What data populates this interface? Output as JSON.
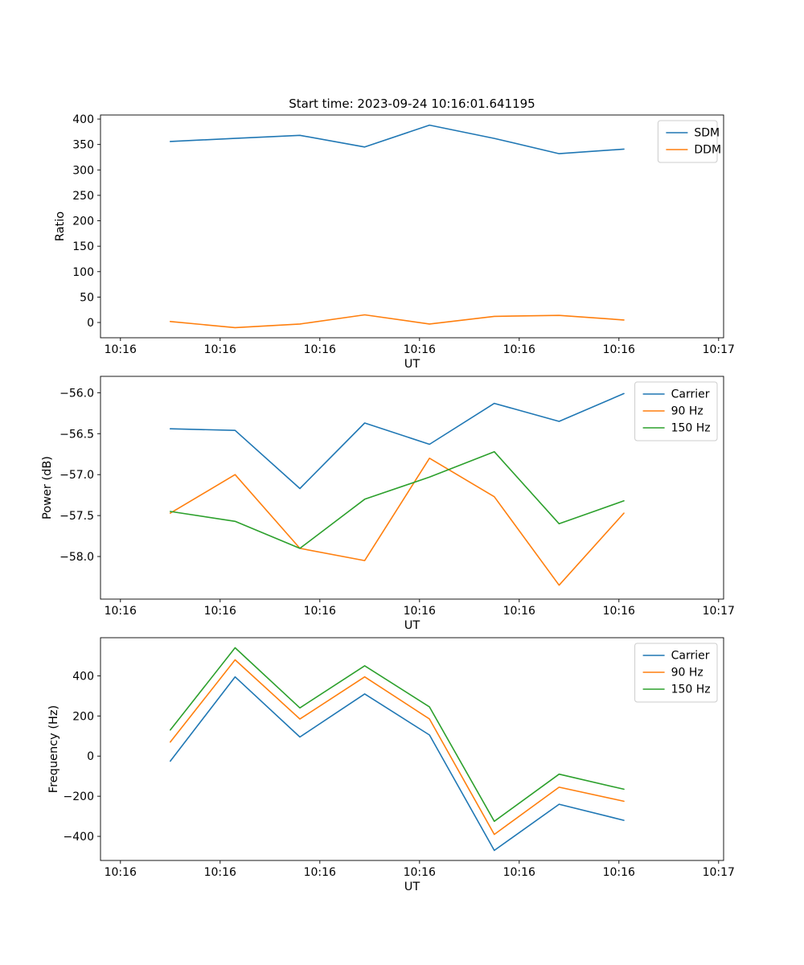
{
  "figure": {
    "title": "Start time: 2023-09-24 10:16:01.641195",
    "background": "#ffffff"
  },
  "colors": {
    "blue": "#1f77b4",
    "orange": "#ff7f0e",
    "green": "#2ca02c",
    "axis": "#000000",
    "legend_border": "#cccccc"
  },
  "chart_data": [
    {
      "id": "ratio",
      "type": "line",
      "title": "",
      "xlabel": "UT",
      "ylabel": "Ratio",
      "grid": false,
      "legend_loc": "upper right",
      "x_seconds": [
        5,
        11.5,
        18,
        24.5,
        31,
        37.5,
        44,
        50.5
      ],
      "xlim": [
        -2,
        60.5
      ],
      "xtick_values": [
        0,
        10,
        20,
        30,
        40,
        50,
        60
      ],
      "xtick_labels": [
        "10:16",
        "10:16",
        "10:16",
        "10:16",
        "10:16",
        "10:16",
        "10:17"
      ],
      "ylim": [
        -30,
        408
      ],
      "ytick_values": [
        0,
        50,
        100,
        150,
        200,
        250,
        300,
        350,
        400
      ],
      "ytick_labels": [
        "0",
        "50",
        "100",
        "150",
        "200",
        "250",
        "300",
        "350",
        "400"
      ],
      "series": [
        {
          "name": "SDM",
          "color": "#1f77b4",
          "values": [
            356,
            362,
            368,
            345,
            388,
            362,
            332,
            341
          ]
        },
        {
          "name": "DDM",
          "color": "#ff7f0e",
          "values": [
            2,
            -10,
            -3,
            15,
            -3,
            12,
            14,
            5
          ]
        }
      ]
    },
    {
      "id": "power",
      "type": "line",
      "title": "",
      "xlabel": "UT",
      "ylabel": "Power (dB)",
      "grid": false,
      "legend_loc": "upper right",
      "x_seconds": [
        5,
        11.5,
        18,
        24.5,
        31,
        37.5,
        44,
        50.5
      ],
      "xlim": [
        -2,
        60.5
      ],
      "xtick_values": [
        0,
        10,
        20,
        30,
        40,
        50,
        60
      ],
      "xtick_labels": [
        "10:16",
        "10:16",
        "10:16",
        "10:16",
        "10:16",
        "10:16",
        "10:17"
      ],
      "ylim": [
        -58.52,
        -55.8
      ],
      "ytick_values": [
        -56.0,
        -56.5,
        -57.0,
        -57.5,
        -58.0
      ],
      "ytick_labels": [
        "−56.0",
        "−56.5",
        "−57.0",
        "−57.5",
        "−58.0"
      ],
      "series": [
        {
          "name": "Carrier",
          "color": "#1f77b4",
          "values": [
            -56.44,
            -56.46,
            -57.17,
            -56.37,
            -56.63,
            -56.13,
            -56.35,
            -56.01
          ]
        },
        {
          "name": "90 Hz",
          "color": "#ff7f0e",
          "values": [
            -57.47,
            -57.0,
            -57.9,
            -58.05,
            -56.8,
            -57.27,
            -58.35,
            -57.47
          ]
        },
        {
          "name": "150 Hz",
          "color": "#2ca02c",
          "values": [
            -57.45,
            -57.57,
            -57.9,
            -57.3,
            -57.03,
            -56.72,
            -57.6,
            -57.32
          ]
        }
      ]
    },
    {
      "id": "frequency",
      "type": "line",
      "title": "",
      "xlabel": "UT",
      "ylabel": "Frequency (Hz)",
      "grid": false,
      "legend_loc": "upper right",
      "x_seconds": [
        5,
        11.5,
        18,
        24.5,
        31,
        37.5,
        44,
        50.5
      ],
      "xlim": [
        -2,
        60.5
      ],
      "xtick_values": [
        0,
        10,
        20,
        30,
        40,
        50,
        60
      ],
      "xtick_labels": [
        "10:16",
        "10:16",
        "10:16",
        "10:16",
        "10:16",
        "10:16",
        "10:17"
      ],
      "ylim": [
        -520,
        590
      ],
      "ytick_values": [
        -400,
        -200,
        0,
        200,
        400
      ],
      "ytick_labels": [
        "−400",
        "−200",
        "0",
        "200",
        "400"
      ],
      "series": [
        {
          "name": "Carrier",
          "color": "#1f77b4",
          "values": [
            -25,
            395,
            95,
            310,
            105,
            -470,
            -240,
            -320
          ]
        },
        {
          "name": "90 Hz",
          "color": "#ff7f0e",
          "values": [
            70,
            480,
            185,
            395,
            185,
            -390,
            -155,
            -225
          ]
        },
        {
          "name": "150 Hz",
          "color": "#2ca02c",
          "values": [
            130,
            540,
            240,
            450,
            245,
            -325,
            -90,
            -165
          ]
        }
      ]
    }
  ]
}
